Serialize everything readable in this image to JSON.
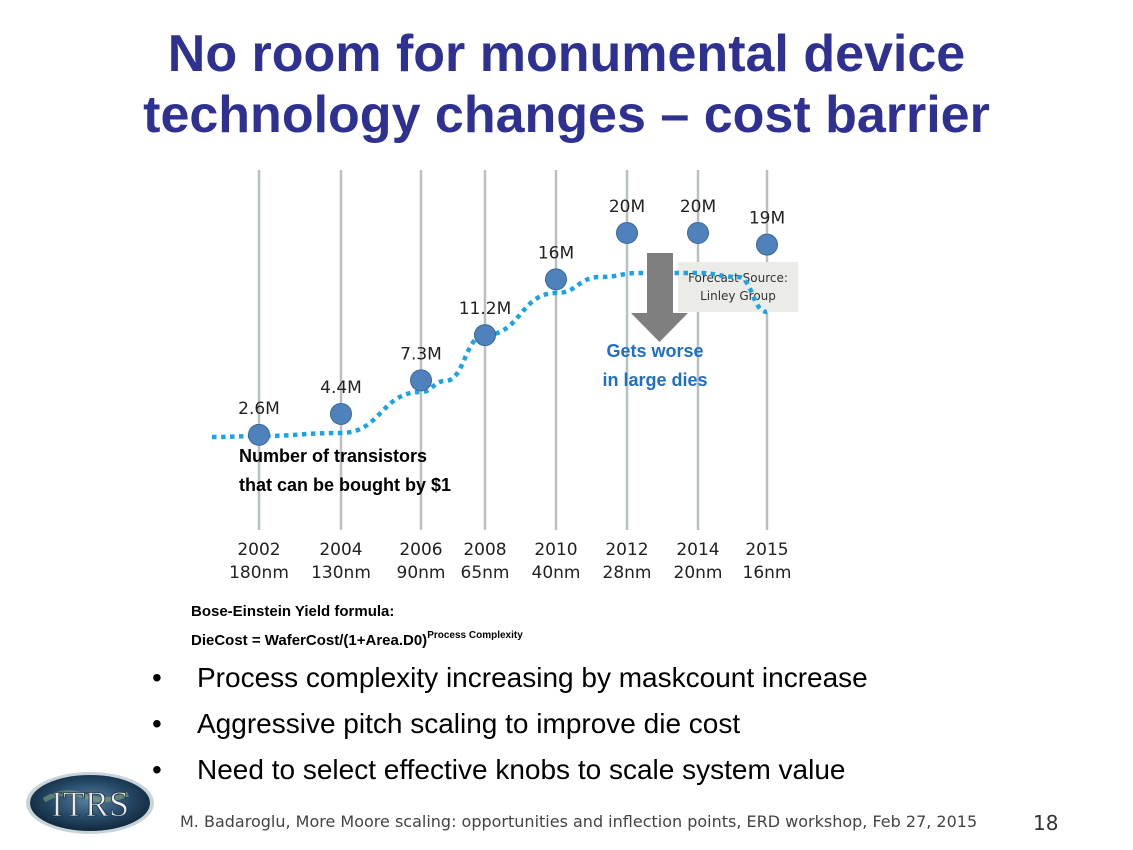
{
  "slide": {
    "title_line1": "No room for monumental device",
    "title_line2": "technology changes – cost barrier",
    "formula_line1": "Bose-Einstein Yield formula:",
    "formula_line2": "DieCost = WaferCost/(1+Area.D0)",
    "formula_sup": "Process Complexity",
    "bullets": [
      "Process complexity increasing by maskcount increase",
      "Aggressive pitch scaling to improve die cost",
      "Need to select effective knobs to scale system value"
    ],
    "bullet_symbol": "•",
    "logo_text": "ITRS",
    "footer": "M. Badaroglu, More Moore scaling: opportunities and inflection points, ERD workshop, Feb 27, 2015",
    "page_number": "18"
  },
  "colors": {
    "title": "#2e3192",
    "point": "#4f81bd",
    "trend": "#1aa3e6",
    "arrow": "#7f7f7f",
    "annotation": "#1f6fc5"
  },
  "chart_data": {
    "type": "scatter",
    "categories": [
      "2002",
      "2004",
      "2006",
      "2008",
      "2010",
      "2012",
      "2014",
      "2015"
    ],
    "nodes": [
      "180nm",
      "130nm",
      "90nm",
      "65nm",
      "40nm",
      "28nm",
      "20nm",
      "16nm"
    ],
    "values": [
      2.6,
      4.4,
      7.3,
      11.2,
      16,
      20,
      20,
      19
    ],
    "labels": [
      "2.6M",
      "4.4M",
      "7.3M",
      "11.2M",
      "16M",
      "20M",
      "20M",
      "19M"
    ],
    "trend_line": "dotted",
    "series_label_line1": "Number of transistors",
    "series_label_line2": "that can be bought by $1",
    "annotation_line1": "Gets worse",
    "annotation_line2": "in large dies",
    "source_line1": "Forecast Source:",
    "source_line2": "Linley Group",
    "grid": true
  }
}
